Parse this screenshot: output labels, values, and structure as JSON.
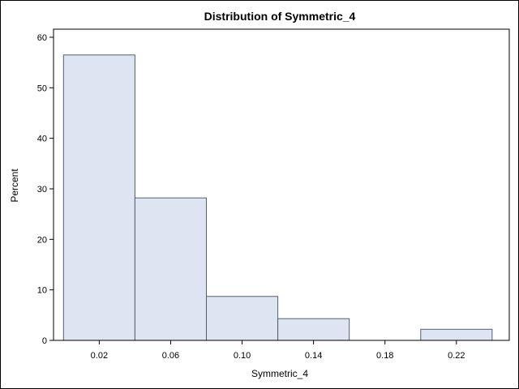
{
  "chart_data": {
    "type": "bar",
    "title": "Distribution of Symmetric_4",
    "xlabel": "Symmetric_4",
    "ylabel": "Percent",
    "bins": [
      {
        "from": 0.0,
        "to": 0.04,
        "value": 56.5
      },
      {
        "from": 0.04,
        "to": 0.08,
        "value": 28.2
      },
      {
        "from": 0.08,
        "to": 0.12,
        "value": 8.7
      },
      {
        "from": 0.12,
        "to": 0.16,
        "value": 4.3
      },
      {
        "from": 0.16,
        "to": 0.2,
        "value": 0
      },
      {
        "from": 0.2,
        "to": 0.24,
        "value": 2.2
      }
    ],
    "xticks": [
      "0.02",
      "0.06",
      "0.10",
      "0.14",
      "0.18",
      "0.22"
    ],
    "xtick_values": [
      0.02,
      0.06,
      0.1,
      0.14,
      0.18,
      0.22
    ],
    "yticks": [
      "0",
      "10",
      "20",
      "30",
      "40",
      "50",
      "60"
    ],
    "ytick_values": [
      0,
      10,
      20,
      30,
      40,
      50,
      60
    ],
    "xlim": [
      -0.0056,
      0.2496
    ],
    "ylim": [
      0,
      61.6
    ],
    "grid": false,
    "colors": {
      "bar_fill": "#dce5f1",
      "bar_stroke": "#555f6b",
      "axis": "#000000"
    }
  }
}
